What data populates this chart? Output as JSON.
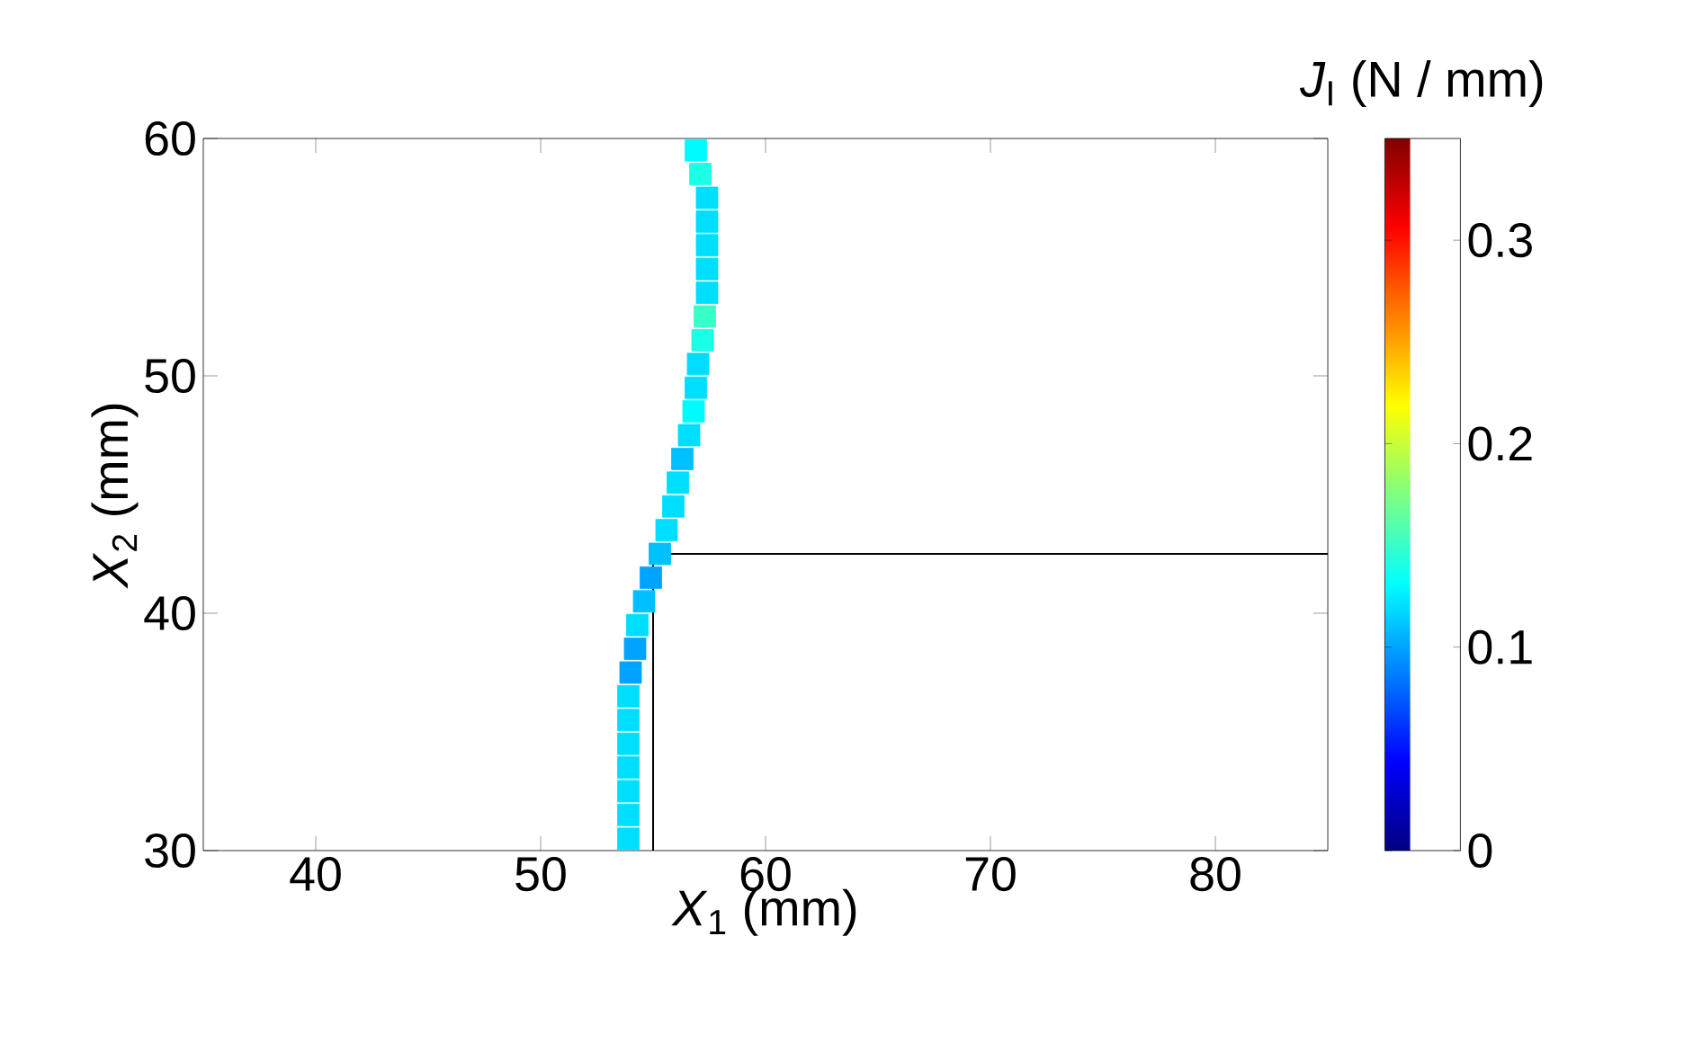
{
  "chart_data": {
    "type": "scatter",
    "xlabel": "*X*$_{1}$ (mm)",
    "ylabel": "*X*$_{2}$ (mm)",
    "clabel": "*J*$_{I}$ (N / mm)",
    "xlim": [
      35,
      85
    ],
    "ylim": [
      30,
      60
    ],
    "xticks": [
      40,
      50,
      60,
      70,
      80
    ],
    "yticks": [
      30,
      40,
      50,
      60
    ],
    "clim": [
      0,
      0.35
    ],
    "cticks": [
      0,
      0.1,
      0.2,
      0.3
    ],
    "series": [
      {
        "marker": "square",
        "colors": [
          "#00deff",
          "#00deff",
          "#00deff",
          "#00deff",
          "#00deff",
          "#00deff",
          "#00deff",
          "#00a4ff",
          "#00a4ff",
          "#00deff",
          "#00c1ff",
          "#00a4ff",
          "#00c1ff",
          "#00deff",
          "#00deff",
          "#00deff",
          "#00c1ff",
          "#00deff",
          "#00fbff",
          "#00deff",
          "#00deff",
          "#1affe5",
          "#37ffc8",
          "#00deff",
          "#00deff",
          "#00deff",
          "#00deff",
          "#00deff",
          "#1affe5",
          "#00fbff"
        ],
        "x": [
          53.9,
          53.9,
          53.9,
          53.9,
          53.9,
          53.9,
          53.9,
          54.0,
          54.2,
          54.3,
          54.6,
          54.9,
          55.3,
          55.6,
          55.9,
          56.1,
          56.3,
          56.6,
          56.8,
          56.9,
          57.0,
          57.2,
          57.3,
          57.4,
          57.4,
          57.4,
          57.4,
          57.4,
          57.1,
          56.9
        ],
        "values": [
          30.5,
          31.5,
          32.5,
          33.5,
          34.5,
          35.5,
          36.5,
          37.5,
          38.5,
          39.5,
          40.5,
          41.5,
          42.5,
          43.5,
          44.5,
          45.5,
          46.5,
          47.5,
          48.5,
          49.5,
          50.5,
          51.5,
          52.5,
          53.5,
          54.5,
          55.5,
          56.5,
          57.5,
          58.5,
          59.5
        ],
        "cvalues": [
          0.12,
          0.12,
          0.12,
          0.12,
          0.12,
          0.12,
          0.12,
          0.1,
          0.1,
          0.12,
          0.11,
          0.1,
          0.11,
          0.12,
          0.12,
          0.12,
          0.11,
          0.12,
          0.13,
          0.12,
          0.12,
          0.14,
          0.15,
          0.12,
          0.12,
          0.12,
          0.12,
          0.12,
          0.14,
          0.13
        ]
      },
      {
        "type": "line",
        "color": "#000000",
        "x": [
          55,
          55,
          85
        ],
        "values": [
          30,
          42.5,
          42.5
        ]
      }
    ]
  }
}
